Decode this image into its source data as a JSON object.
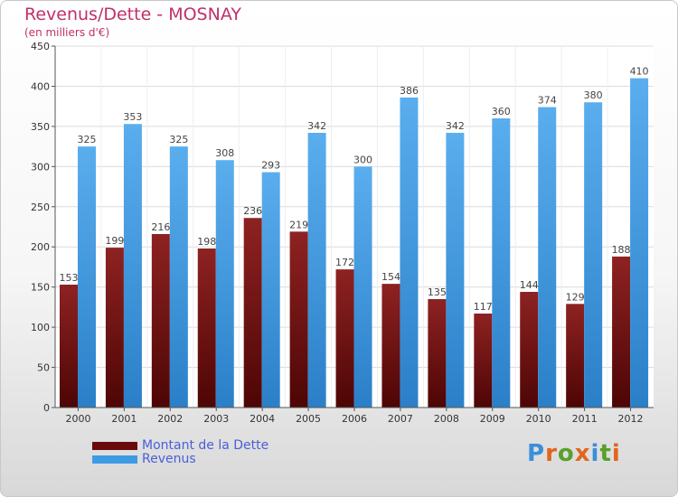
{
  "title": "Revenus/Dette - MOSNAY",
  "subtitle": "(en milliers d'€)",
  "logo_text": "Proxiti",
  "chart_data": {
    "type": "bar",
    "categories": [
      "2000",
      "2001",
      "2002",
      "2003",
      "2004",
      "2005",
      "2006",
      "2007",
      "2008",
      "2009",
      "2010",
      "2011",
      "2012"
    ],
    "series": [
      {
        "name": "Montant de la Dette",
        "color": "#7a0d0d",
        "values": [
          153,
          199,
          216,
          198,
          236,
          219,
          172,
          154,
          135,
          117,
          144,
          129,
          188
        ]
      },
      {
        "name": "Revenus",
        "color": "#3d9be6",
        "values": [
          325,
          353,
          325,
          308,
          293,
          342,
          300,
          386,
          342,
          360,
          374,
          380,
          410
        ]
      }
    ],
    "ylim": [
      0,
      450
    ],
    "yticks": [
      0,
      50,
      100,
      150,
      200,
      250,
      300,
      350,
      400,
      450
    ],
    "grid": true,
    "legend": "bottom-left"
  }
}
